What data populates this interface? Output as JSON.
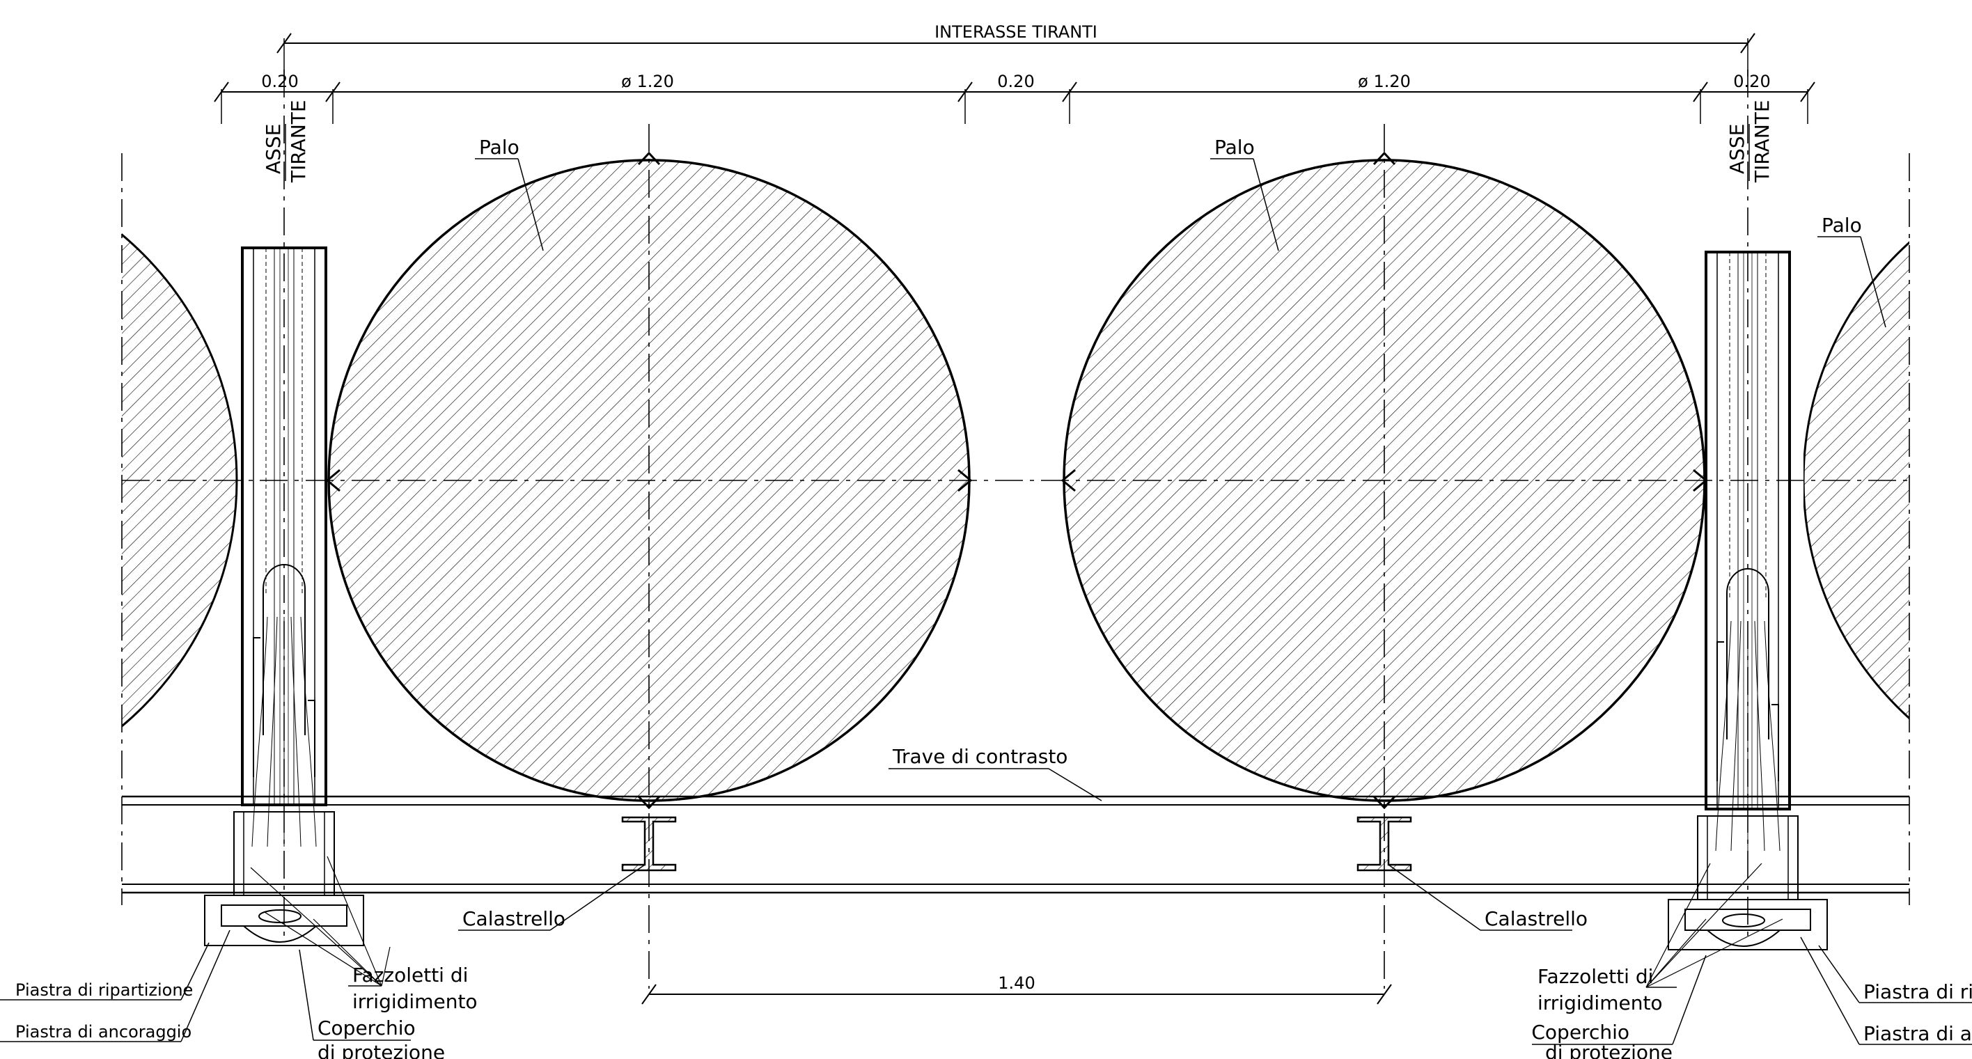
{
  "dimensions": {
    "interasse": "INTERASSE TIRANTI",
    "d1": "0.20",
    "d2": "ø 1.20",
    "d3": "0.20",
    "d4": "ø 1.20",
    "d5": "0.20",
    "pile_spacing": "1.40"
  },
  "labels": {
    "asse_tirante_left": [
      "ASSE",
      "TIRANTE"
    ],
    "asse_tirante_right": [
      "ASSE",
      "TIRANTE"
    ],
    "palo": "Palo",
    "trave": "Trave di contrasto",
    "calastrello": "Calastrello",
    "piastra_ripartizione": "Piastra di ripartizione",
    "piastra_ancoraggio": "Piastra di ancoraggio",
    "fazzoletti": [
      "Fazzoletti di",
      "irrigidimento"
    ],
    "coperchio": [
      "Coperchio",
      "di protezione"
    ]
  },
  "colors": {
    "line": "#000000",
    "background": "#ffffff"
  }
}
